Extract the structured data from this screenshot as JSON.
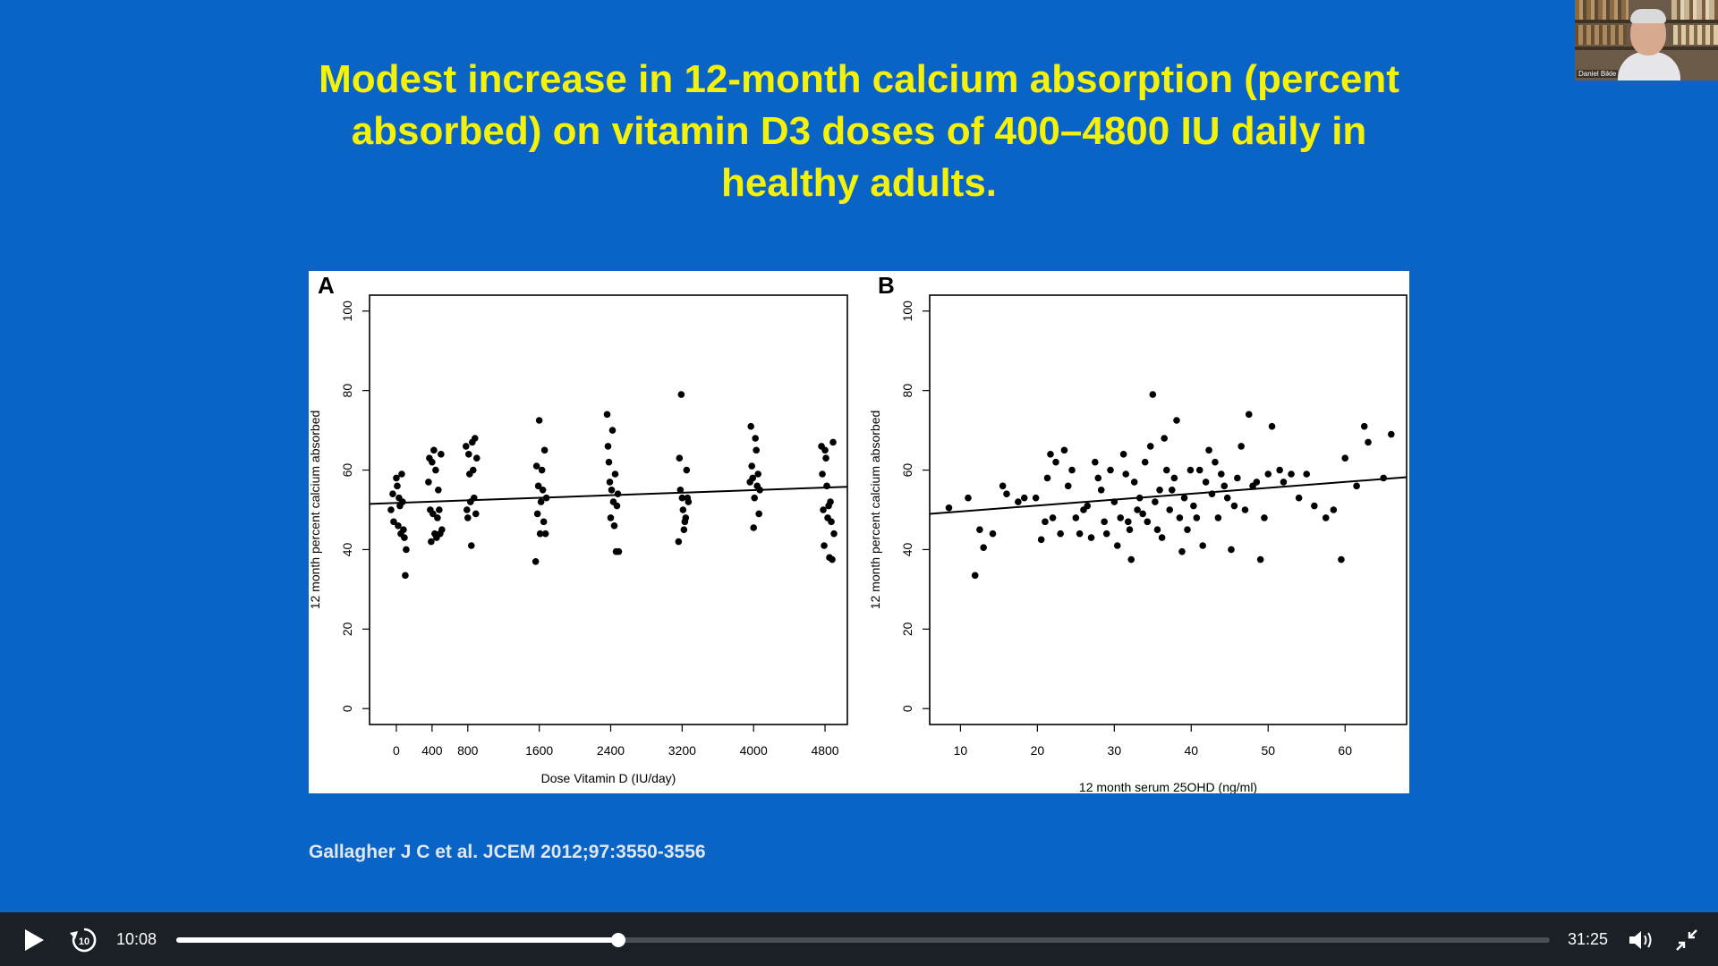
{
  "slide": {
    "title_lines": [
      "Modest increase in 12-month calcium absorption (percent",
      "absorbed) on vitamin D3 doses of 400–4800 IU daily in",
      "healthy adults."
    ],
    "citation": "Gallagher J C et al. JCEM 2012;97:3550-3556",
    "colors": {
      "background": "#0964c6",
      "title": "#f4f20a",
      "citation": "#dfe8f2"
    }
  },
  "webcam": {
    "name": "Daniel Bikle"
  },
  "player": {
    "current_time": "10:08",
    "total_time": "31:25",
    "progress": 0.322,
    "icons": {
      "play": "play-icon",
      "rewind": "rewind-10-icon",
      "volume": "volume-icon",
      "fullscreen": "exit-fullscreen-icon"
    }
  },
  "chart_data": [
    {
      "panel_label": "A",
      "type": "scatter",
      "xlabel": "Dose Vitamin D (IU/day)",
      "ylabel": "12 month percent calcium absorbed",
      "xlim": [
        -300,
        5050
      ],
      "ylim": [
        -4,
        104
      ],
      "x_ticks": [
        0,
        400,
        800,
        1600,
        2400,
        3200,
        4000,
        4800
      ],
      "x_tick_labels": [
        "0",
        "400",
        "800",
        "1600",
        "2400",
        "3200",
        "4000",
        "4800"
      ],
      "y_ticks": [
        0,
        20,
        40,
        60,
        80,
        100
      ],
      "y_tick_labels": [
        "0",
        "20",
        "40",
        "60",
        "80",
        "100"
      ],
      "regression_line": {
        "x": [
          -300,
          5050
        ],
        "y": [
          51.5,
          55.8
        ]
      },
      "points": [
        [
          -60,
          50
        ],
        [
          -40,
          54
        ],
        [
          -30,
          47
        ],
        [
          0,
          58
        ],
        [
          10,
          56
        ],
        [
          20,
          46
        ],
        [
          30,
          53
        ],
        [
          40,
          51
        ],
        [
          50,
          44
        ],
        [
          60,
          59
        ],
        [
          70,
          52
        ],
        [
          80,
          45
        ],
        [
          90,
          43
        ],
        [
          100,
          33.5
        ],
        [
          110,
          40
        ],
        [
          360,
          57
        ],
        [
          370,
          63
        ],
        [
          380,
          50
        ],
        [
          390,
          42
        ],
        [
          400,
          62
        ],
        [
          410,
          49
        ],
        [
          420,
          65
        ],
        [
          430,
          44
        ],
        [
          440,
          60
        ],
        [
          450,
          43
        ],
        [
          460,
          48
        ],
        [
          470,
          55
        ],
        [
          480,
          50
        ],
        [
          490,
          44
        ],
        [
          500,
          64
        ],
        [
          510,
          45
        ],
        [
          780,
          66
        ],
        [
          790,
          50
        ],
        [
          800,
          48
        ],
        [
          810,
          64
        ],
        [
          820,
          59
        ],
        [
          830,
          52
        ],
        [
          840,
          41
        ],
        [
          850,
          67
        ],
        [
          860,
          60
        ],
        [
          870,
          53
        ],
        [
          880,
          68
        ],
        [
          890,
          49
        ],
        [
          900,
          63
        ],
        [
          1560,
          37
        ],
        [
          1570,
          61
        ],
        [
          1580,
          49
        ],
        [
          1590,
          56
        ],
        [
          1600,
          72.5
        ],
        [
          1610,
          44
        ],
        [
          1620,
          52
        ],
        [
          1630,
          60
        ],
        [
          1640,
          55
        ],
        [
          1650,
          47
        ],
        [
          1660,
          65
        ],
        [
          1670,
          44
        ],
        [
          1680,
          53
        ],
        [
          2360,
          74
        ],
        [
          2370,
          66
        ],
        [
          2380,
          62
        ],
        [
          2390,
          57
        ],
        [
          2400,
          48
        ],
        [
          2410,
          55
        ],
        [
          2420,
          70
        ],
        [
          2430,
          52
        ],
        [
          2440,
          46
        ],
        [
          2450,
          59
        ],
        [
          2460,
          39.5
        ],
        [
          2470,
          51
        ],
        [
          2480,
          54
        ],
        [
          2490,
          39.5
        ],
        [
          3160,
          42
        ],
        [
          3170,
          63
        ],
        [
          3180,
          55
        ],
        [
          3190,
          79
        ],
        [
          3200,
          53
        ],
        [
          3210,
          50
        ],
        [
          3220,
          45
        ],
        [
          3230,
          47
        ],
        [
          3240,
          48
        ],
        [
          3250,
          60
        ],
        [
          3260,
          53
        ],
        [
          3270,
          52
        ],
        [
          3960,
          57
        ],
        [
          3970,
          71
        ],
        [
          3980,
          61
        ],
        [
          3990,
          58
        ],
        [
          4000,
          45.5
        ],
        [
          4010,
          53
        ],
        [
          4020,
          68
        ],
        [
          4030,
          65
        ],
        [
          4040,
          56
        ],
        [
          4050,
          59
        ],
        [
          4060,
          49
        ],
        [
          4070,
          55
        ],
        [
          4760,
          66
        ],
        [
          4770,
          59
        ],
        [
          4780,
          50
        ],
        [
          4790,
          41
        ],
        [
          4800,
          65
        ],
        [
          4810,
          63
        ],
        [
          4820,
          56
        ],
        [
          4830,
          48
        ],
        [
          4840,
          51
        ],
        [
          4850,
          38
        ],
        [
          4860,
          52
        ],
        [
          4870,
          47
        ],
        [
          4880,
          37.5
        ],
        [
          4890,
          67
        ],
        [
          4900,
          44
        ]
      ]
    },
    {
      "panel_label": "B",
      "type": "scatter",
      "xlabel": "12 month serum 25OHD (ng/ml)",
      "ylabel": "12 month percent calcium absorbed",
      "xlim": [
        6,
        68
      ],
      "ylim": [
        -4,
        104
      ],
      "x_ticks": [
        10,
        20,
        30,
        40,
        50,
        60
      ],
      "x_tick_labels": [
        "10",
        "20",
        "30",
        "40",
        "50",
        "60"
      ],
      "y_ticks": [
        0,
        20,
        40,
        60,
        80,
        100
      ],
      "y_tick_labels": [
        "0",
        "20",
        "40",
        "60",
        "80",
        "100"
      ],
      "regression_line": {
        "x": [
          6,
          68
        ],
        "y": [
          49,
          58.2
        ]
      },
      "points": [
        [
          8.5,
          50.5
        ],
        [
          11,
          53
        ],
        [
          11.9,
          33.5
        ],
        [
          12.5,
          45
        ],
        [
          13,
          40.5
        ],
        [
          14.2,
          44
        ],
        [
          15.5,
          56
        ],
        [
          16,
          54
        ],
        [
          17.5,
          52
        ],
        [
          18.3,
          53
        ],
        [
          19.8,
          53
        ],
        [
          20.5,
          42.5
        ],
        [
          21,
          47
        ],
        [
          21.3,
          58
        ],
        [
          21.7,
          64
        ],
        [
          22,
          48
        ],
        [
          22.4,
          62
        ],
        [
          23,
          44
        ],
        [
          23.5,
          65
        ],
        [
          24,
          56
        ],
        [
          24.5,
          60
        ],
        [
          25,
          48
        ],
        [
          25.5,
          44
        ],
        [
          26,
          50
        ],
        [
          26.5,
          51
        ],
        [
          27,
          43
        ],
        [
          27.5,
          62
        ],
        [
          27.9,
          58
        ],
        [
          28.3,
          55
        ],
        [
          28.7,
          47
        ],
        [
          29,
          44
        ],
        [
          29.5,
          60
        ],
        [
          30,
          52
        ],
        [
          30.4,
          41
        ],
        [
          30.8,
          48
        ],
        [
          31.2,
          64
        ],
        [
          31.5,
          59
        ],
        [
          31.8,
          47
        ],
        [
          32,
          45
        ],
        [
          32.2,
          37.5
        ],
        [
          32.6,
          57
        ],
        [
          33,
          50
        ],
        [
          33.3,
          53
        ],
        [
          33.7,
          49
        ],
        [
          34,
          62
        ],
        [
          34.3,
          47
        ],
        [
          34.7,
          66
        ],
        [
          35,
          79
        ],
        [
          35.3,
          52
        ],
        [
          35.6,
          45
        ],
        [
          35.9,
          55
        ],
        [
          36.2,
          43
        ],
        [
          36.5,
          68
        ],
        [
          36.8,
          60
        ],
        [
          37.2,
          50
        ],
        [
          37.5,
          55
        ],
        [
          37.8,
          58
        ],
        [
          38.1,
          72.5
        ],
        [
          38.5,
          48
        ],
        [
          38.8,
          39.5
        ],
        [
          39.1,
          53
        ],
        [
          39.5,
          45
        ],
        [
          39.9,
          60
        ],
        [
          40.3,
          51
        ],
        [
          40.7,
          48
        ],
        [
          41.1,
          60
        ],
        [
          41.5,
          41
        ],
        [
          41.9,
          57
        ],
        [
          42.3,
          65
        ],
        [
          42.7,
          54
        ],
        [
          43.1,
          62
        ],
        [
          43.5,
          48
        ],
        [
          43.9,
          59
        ],
        [
          44.3,
          56
        ],
        [
          44.7,
          53
        ],
        [
          45.2,
          40
        ],
        [
          45.6,
          51
        ],
        [
          46,
          58
        ],
        [
          46.5,
          66
        ],
        [
          47,
          50
        ],
        [
          47.5,
          74
        ],
        [
          48,
          56
        ],
        [
          48.5,
          57
        ],
        [
          49,
          37.5
        ],
        [
          49.5,
          48
        ],
        [
          50,
          59
        ],
        [
          50.5,
          71
        ],
        [
          51.5,
          60
        ],
        [
          52,
          57
        ],
        [
          53,
          59
        ],
        [
          54,
          53
        ],
        [
          55,
          59
        ],
        [
          56,
          51
        ],
        [
          57.5,
          48
        ],
        [
          58.5,
          50
        ],
        [
          59.5,
          37.5
        ],
        [
          60,
          63
        ],
        [
          61.5,
          56
        ],
        [
          62.5,
          71
        ],
        [
          63,
          67
        ],
        [
          65,
          58
        ],
        [
          66,
          69
        ]
      ]
    }
  ]
}
